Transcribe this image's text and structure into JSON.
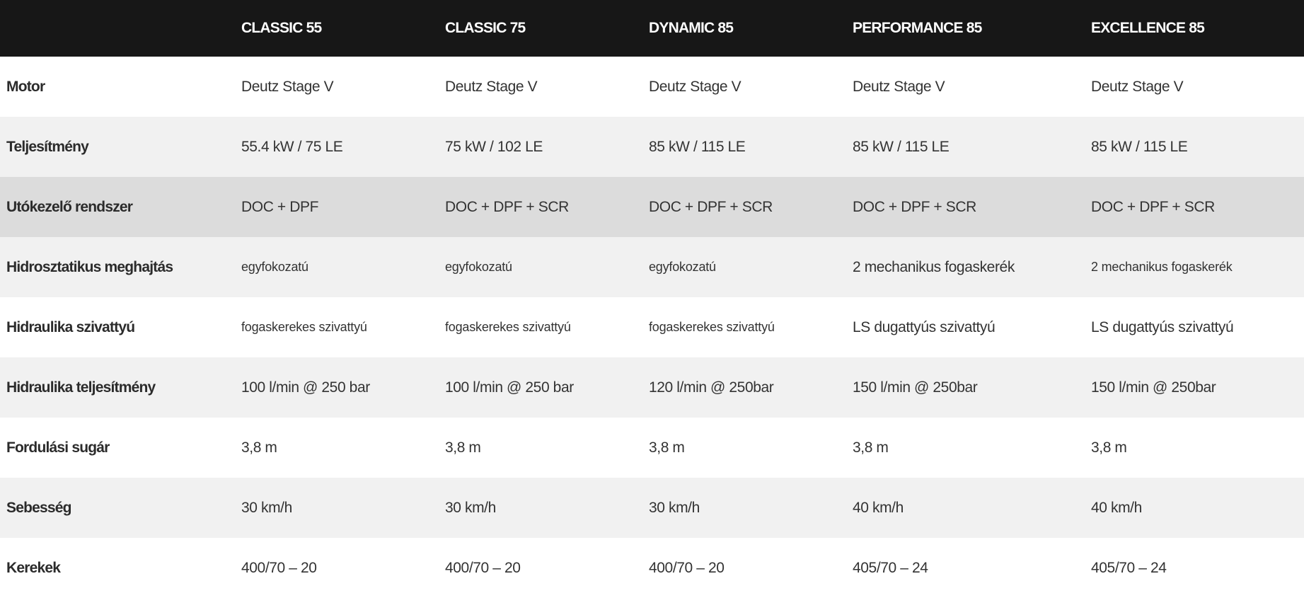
{
  "table": {
    "columns": [
      "",
      "CLASSIC 55",
      "CLASSIC 75",
      "DYNAMIC 85",
      "PERFORMANCE 85",
      "EXCELLENCE 85"
    ],
    "rows": [
      {
        "label": "Motor",
        "values": [
          "Deutz Stage V",
          "Deutz Stage V",
          "Deutz Stage V",
          "Deutz Stage V",
          "Deutz Stage V"
        ]
      },
      {
        "label": "Teljesítmény",
        "values": [
          "55.4 kW / 75 LE",
          "75 kW / 102 LE",
          "85 kW / 115 LE",
          "85 kW / 115 LE",
          "85 kW / 115 LE"
        ]
      },
      {
        "label": "Utókezelő rendszer",
        "values": [
          "DOC + DPF",
          "DOC + DPF + SCR",
          "DOC + DPF + SCR",
          "DOC + DPF + SCR",
          "DOC + DPF + SCR"
        ]
      },
      {
        "label": "Hidrosztatikus meghajtás",
        "values": [
          "egyfokozatú",
          "egyfokozatú",
          "egyfokozatú",
          "2 mechanikus fogaskerék",
          "2 mechanikus fogaskerék"
        ]
      },
      {
        "label": "Hidraulika szivattyú",
        "values": [
          "fogaskerekes szivattyú",
          "fogaskerekes szivattyú",
          "fogaskerekes szivattyú",
          "LS dugattyús szivattyú",
          "LS dugattyús szivattyú"
        ]
      },
      {
        "label": "Hidraulika teljesítmény",
        "values": [
          "100 l/min @ 250 bar",
          "100 l/min @ 250 bar",
          "120 l/min @ 250bar",
          "150 l/min @ 250bar",
          "150 l/min @ 250bar"
        ]
      },
      {
        "label": "Fordulási sugár",
        "values": [
          "3,8 m",
          "3,8 m",
          "3,8 m",
          "3,8 m",
          "3,8 m"
        ]
      },
      {
        "label": "Sebesség",
        "values": [
          "30 km/h",
          "30 km/h",
          "30 km/h",
          "40 km/h",
          "40 km/h"
        ]
      },
      {
        "label": "Kerekek",
        "values": [
          "400/70 – 20",
          "400/70 – 20",
          "400/70 – 20",
          "405/70 – 24",
          "405/70 – 24"
        ]
      }
    ]
  },
  "colors": {
    "header_bg": "#171717",
    "row_light": "#f1f1f1",
    "row_dark": "#dcdcdc",
    "text": "#333333"
  }
}
